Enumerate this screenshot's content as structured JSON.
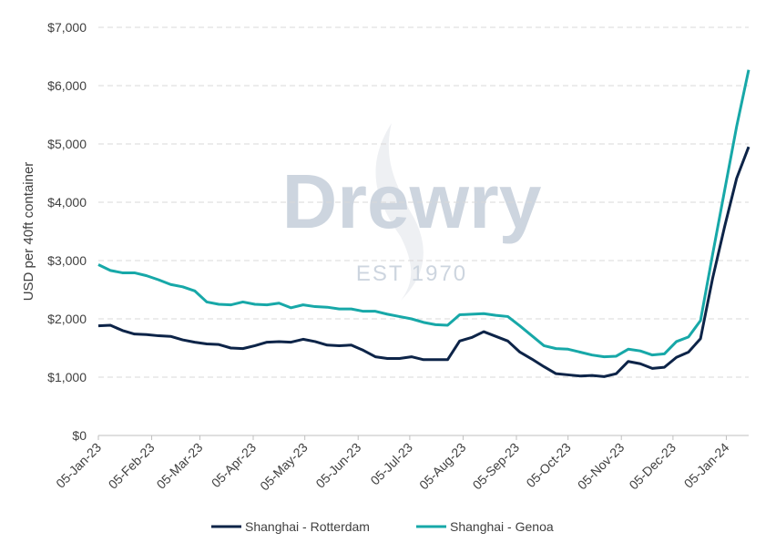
{
  "chart_data": {
    "type": "line",
    "y_label": "USD per 40ft container",
    "annotations": [
      "Drewry",
      "EST 1970"
    ],
    "x": [
      "05-Jan-23",
      "12-Jan-23",
      "19-Jan-23",
      "26-Jan-23",
      "02-Feb-23",
      "09-Feb-23",
      "16-Feb-23",
      "23-Feb-23",
      "02-Mar-23",
      "09-Mar-23",
      "16-Mar-23",
      "23-Mar-23",
      "30-Mar-23",
      "06-Apr-23",
      "13-Apr-23",
      "20-Apr-23",
      "27-Apr-23",
      "04-May-23",
      "11-May-23",
      "18-May-23",
      "25-May-23",
      "01-Jun-23",
      "08-Jun-23",
      "15-Jun-23",
      "22-Jun-23",
      "29-Jun-23",
      "06-Jul-23",
      "13-Jul-23",
      "20-Jul-23",
      "27-Jul-23",
      "03-Aug-23",
      "10-Aug-23",
      "17-Aug-23",
      "24-Aug-23",
      "31-Aug-23",
      "07-Sep-23",
      "14-Sep-23",
      "21-Sep-23",
      "28-Sep-23",
      "05-Oct-23",
      "12-Oct-23",
      "19-Oct-23",
      "26-Oct-23",
      "02-Nov-23",
      "09-Nov-23",
      "16-Nov-23",
      "23-Nov-23",
      "30-Nov-23",
      "07-Dec-23",
      "14-Dec-23",
      "21-Dec-23",
      "28-Dec-23",
      "04-Jan-24",
      "11-Jan-24",
      "18-Jan-24"
    ],
    "series": [
      {
        "name": "Shanghai - Rotterdam",
        "color": "#0d2448",
        "values": [
          1880,
          1890,
          1800,
          1740,
          1730,
          1710,
          1700,
          1640,
          1600,
          1570,
          1560,
          1500,
          1490,
          1540,
          1600,
          1610,
          1600,
          1650,
          1610,
          1550,
          1540,
          1550,
          1460,
          1350,
          1320,
          1320,
          1350,
          1300,
          1300,
          1300,
          1620,
          1680,
          1780,
          1700,
          1620,
          1430,
          1310,
          1180,
          1060,
          1040,
          1020,
          1030,
          1010,
          1060,
          1270,
          1230,
          1150,
          1170,
          1340,
          1430,
          1660,
          2690,
          3580,
          4410,
          4950
        ]
      },
      {
        "name": "Shanghai - Genoa",
        "color": "#17a8a8",
        "values": [
          2930,
          2830,
          2790,
          2790,
          2740,
          2670,
          2590,
          2550,
          2480,
          2290,
          2250,
          2240,
          2290,
          2250,
          2240,
          2270,
          2190,
          2240,
          2210,
          2200,
          2170,
          2170,
          2130,
          2130,
          2080,
          2040,
          2000,
          1940,
          1900,
          1890,
          2070,
          2080,
          2090,
          2060,
          2040,
          1880,
          1710,
          1540,
          1490,
          1480,
          1430,
          1380,
          1350,
          1360,
          1480,
          1450,
          1380,
          1400,
          1610,
          1690,
          1970,
          3100,
          4200,
          5300,
          6270
        ]
      }
    ],
    "xlim": [
      "05-Jan-23",
      "18-Jan-24"
    ],
    "xticks": [
      "05-Jan-23",
      "05-Feb-23",
      "05-Mar-23",
      "05-Apr-23",
      "05-May-23",
      "05-Jun-23",
      "05-Jul-23",
      "05-Aug-23",
      "05-Sep-23",
      "05-Oct-23",
      "05-Nov-23",
      "05-Dec-23",
      "05-Jan-24"
    ],
    "ylim": [
      0,
      7000
    ],
    "yticks": [
      {
        "value": 0,
        "label": "$0"
      },
      {
        "value": 1000,
        "label": "$1,000"
      },
      {
        "value": 2000,
        "label": "$2,000"
      },
      {
        "value": 3000,
        "label": "$3,000"
      },
      {
        "value": 4000,
        "label": "$4,000"
      },
      {
        "value": 5000,
        "label": "$5,000"
      },
      {
        "value": 6000,
        "label": "$6,000"
      },
      {
        "value": 7000,
        "label": "$7,000"
      }
    ],
    "grid": true,
    "legend": "bottom"
  }
}
